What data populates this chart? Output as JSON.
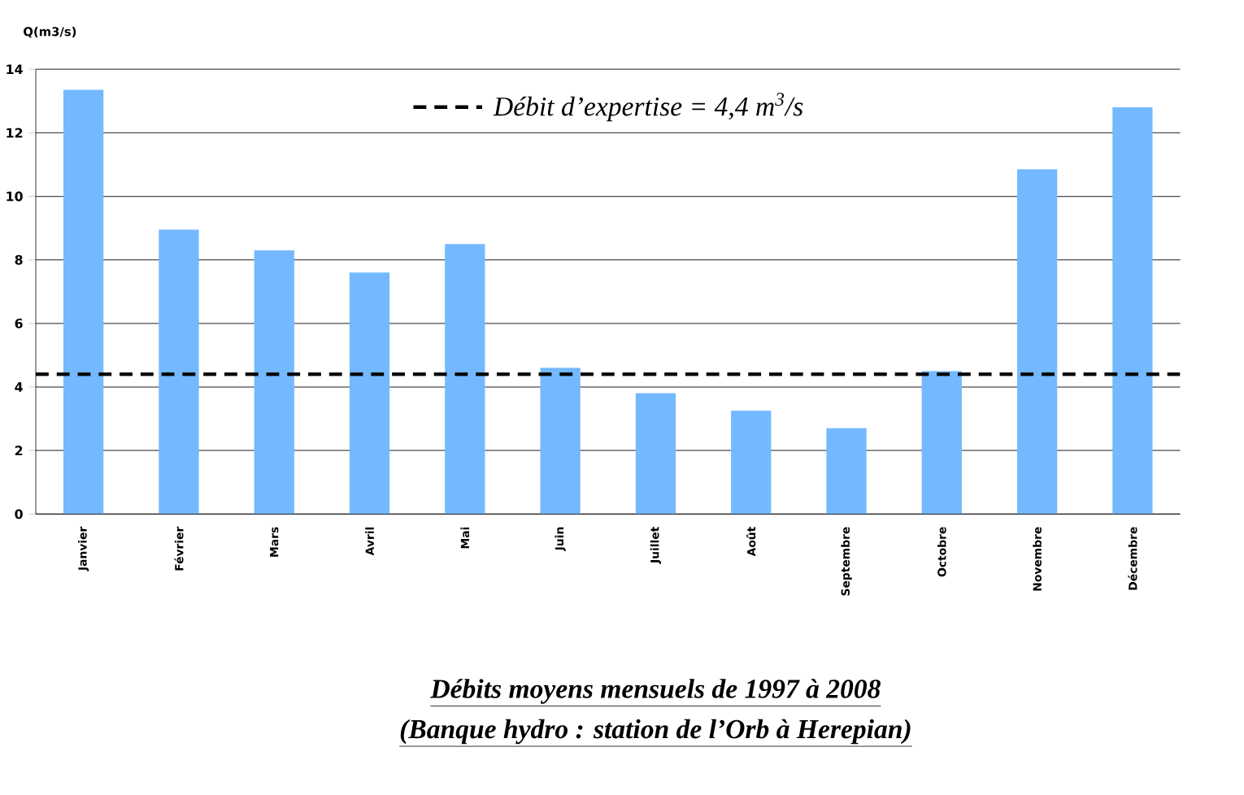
{
  "chart_data": {
    "type": "bar",
    "title": "Débits moyens mensuels de 1997 à 2008",
    "subtitle": "(Banque hydro : station de l’Orb à Herepian)",
    "ylabel": "Q(m3/s)",
    "categories": [
      "Janvier",
      "Février",
      "Mars",
      "Avril",
      "Mai",
      "Juin",
      "Juillet",
      "Août",
      "Septembre",
      "Octobre",
      "Novembre",
      "Décembre"
    ],
    "values": [
      13.35,
      8.95,
      8.3,
      7.6,
      8.5,
      4.6,
      3.8,
      3.25,
      2.7,
      4.5,
      10.85,
      12.8
    ],
    "color": "#74b9ff",
    "ylim": [
      0,
      14
    ],
    "yticks": [
      0,
      2,
      4,
      6,
      8,
      10,
      12,
      14
    ],
    "grid": "y",
    "ref_lines": [
      {
        "axis": "y",
        "value": 4.4,
        "label": "Débit d’expertise = 4,4 m$^{3}$/s",
        "color": "#000000",
        "line_style": "dashed"
      }
    ]
  }
}
